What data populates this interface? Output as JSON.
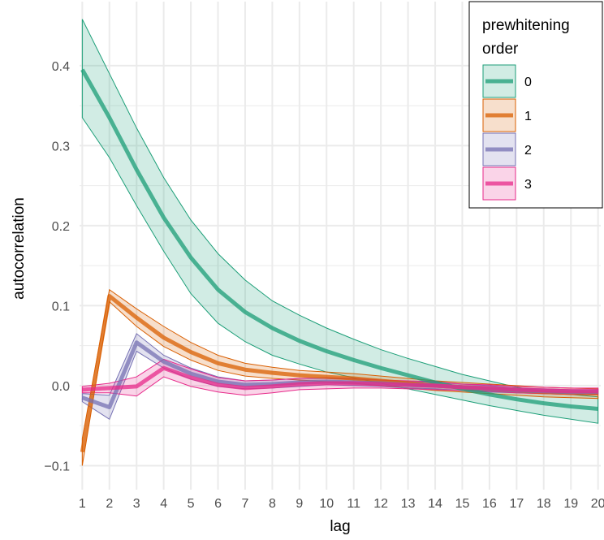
{
  "chart_data": {
    "type": "line",
    "xlabel": "lag",
    "ylabel": "autocorrelation",
    "x": [
      1,
      2,
      3,
      4,
      5,
      6,
      7,
      8,
      9,
      10,
      11,
      12,
      13,
      14,
      15,
      16,
      17,
      18,
      19,
      20
    ],
    "xlim": [
      0.9,
      20.1
    ],
    "ylim": [
      -0.13,
      0.48
    ],
    "yticks": [
      -0.1,
      0.0,
      0.1,
      0.2,
      0.3,
      0.4
    ],
    "ytick_labels": [
      "−0.1",
      "0.0",
      "0.1",
      "0.2",
      "0.3",
      "0.4"
    ],
    "grid": true,
    "legend": {
      "title_lines": [
        "prewhitening",
        "order"
      ],
      "placement": "top-right"
    },
    "series": [
      {
        "name": "0",
        "color": "#1b9e77",
        "values": [
          0.395,
          0.335,
          0.27,
          0.21,
          0.16,
          0.12,
          0.092,
          0.072,
          0.056,
          0.043,
          0.032,
          0.022,
          0.013,
          0.004,
          -0.004,
          -0.011,
          -0.017,
          -0.022,
          -0.026,
          -0.029
        ],
        "lower": [
          0.335,
          0.285,
          0.225,
          0.168,
          0.115,
          0.078,
          0.055,
          0.038,
          0.027,
          0.017,
          0.01,
          0.003,
          -0.004,
          -0.011,
          -0.018,
          -0.025,
          -0.031,
          -0.037,
          -0.042,
          -0.047
        ],
        "upper": [
          0.458,
          0.39,
          0.322,
          0.26,
          0.207,
          0.165,
          0.132,
          0.106,
          0.088,
          0.072,
          0.058,
          0.045,
          0.034,
          0.024,
          0.014,
          0.006,
          -0.002,
          -0.007,
          -0.011,
          -0.014
        ]
      },
      {
        "name": "1",
        "color": "#d95f02",
        "values": [
          -0.083,
          0.112,
          0.085,
          0.06,
          0.042,
          0.028,
          0.02,
          0.016,
          0.013,
          0.011,
          0.009,
          0.006,
          0.003,
          0.0,
          -0.002,
          -0.004,
          -0.006,
          -0.008,
          -0.009,
          -0.01
        ],
        "lower": [
          -0.1,
          0.105,
          0.074,
          0.049,
          0.032,
          0.019,
          0.012,
          0.009,
          0.007,
          0.005,
          0.003,
          0.0,
          -0.003,
          -0.006,
          -0.008,
          -0.01,
          -0.012,
          -0.014,
          -0.015,
          -0.016
        ],
        "upper": [
          -0.066,
          0.12,
          0.096,
          0.074,
          0.054,
          0.038,
          0.028,
          0.023,
          0.019,
          0.017,
          0.015,
          0.012,
          0.009,
          0.006,
          0.004,
          0.002,
          0.0,
          -0.002,
          -0.003,
          -0.004
        ]
      },
      {
        "name": "2",
        "color": "#7570b3",
        "values": [
          -0.015,
          -0.027,
          0.054,
          0.03,
          0.015,
          0.005,
          0.001,
          0.002,
          0.004,
          0.005,
          0.004,
          0.003,
          0.001,
          0.0,
          -0.002,
          -0.004,
          -0.006,
          -0.007,
          -0.008,
          -0.008
        ],
        "lower": [
          -0.02,
          -0.042,
          0.043,
          0.022,
          0.008,
          -0.001,
          -0.004,
          -0.003,
          -0.001,
          0.001,
          0.0,
          -0.001,
          -0.003,
          -0.004,
          -0.006,
          -0.008,
          -0.009,
          -0.01,
          -0.011,
          -0.011
        ],
        "upper": [
          -0.01,
          -0.012,
          0.065,
          0.038,
          0.022,
          0.011,
          0.006,
          0.007,
          0.009,
          0.009,
          0.008,
          0.007,
          0.005,
          0.004,
          0.002,
          0.0,
          -0.003,
          -0.004,
          -0.005,
          -0.005
        ]
      },
      {
        "name": "3",
        "color": "#e7298a",
        "values": [
          -0.005,
          -0.003,
          -0.001,
          0.022,
          0.01,
          0.001,
          -0.003,
          -0.001,
          0.002,
          0.003,
          0.003,
          0.002,
          0.001,
          0.0,
          -0.002,
          -0.003,
          -0.005,
          -0.006,
          -0.007,
          -0.007
        ],
        "lower": [
          -0.009,
          -0.009,
          -0.013,
          0.011,
          -0.001,
          -0.008,
          -0.012,
          -0.009,
          -0.005,
          -0.004,
          -0.003,
          -0.003,
          -0.004,
          -0.005,
          -0.006,
          -0.007,
          -0.009,
          -0.01,
          -0.011,
          -0.011
        ],
        "upper": [
          -0.001,
          0.003,
          0.011,
          0.033,
          0.021,
          0.01,
          0.006,
          0.007,
          0.009,
          0.01,
          0.009,
          0.007,
          0.006,
          0.005,
          0.002,
          0.001,
          -0.001,
          -0.002,
          -0.003,
          -0.003
        ]
      }
    ]
  }
}
